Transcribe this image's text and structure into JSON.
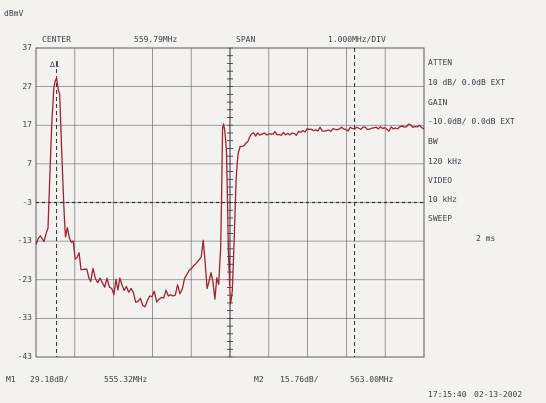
{
  "header": {
    "unit": "dBmV",
    "center_label": "CENTER",
    "center_value": "559.79MHz",
    "span_label": "SPAN",
    "span_value": "1.000MHz/DIV"
  },
  "side_panel": {
    "atten_label": "ATTEN",
    "atten_value": "10 dB/ 0.0dB EXT",
    "gain_label": "GAIN",
    "gain_value": "-10.0dB/ 0.0dB EXT",
    "bw_label": "BW",
    "bw_value": "120 kHz",
    "video_label": "VIDEO",
    "video_value": "10 kHz",
    "sweep_label": "SWEEP",
    "sweep_value": "2 ms"
  },
  "y_ticks": [
    "37",
    "27",
    "17",
    "7",
    "-3",
    "-13",
    "-23",
    "-33",
    "-43"
  ],
  "marker_tag": "∆1",
  "footer": {
    "m1_label": "M1",
    "m1_level": "29.18dB/",
    "m1_freq": "555.32MHz",
    "m2_label": "M2",
    "m2_level": "15.76dB/",
    "m2_freq": "563.00MHz",
    "time": "17:15:40",
    "date": "02-13-2002"
  },
  "colors": {
    "trace": "#a02233",
    "grid": "#5a5a66",
    "text": "#3e3e4c",
    "background": "#f4f2ee"
  },
  "chart_data": {
    "type": "line",
    "xlim": [
      554.79,
      564.79
    ],
    "ylim": [
      -43,
      37
    ],
    "x_unit": "MHz",
    "y_unit": "dBmV",
    "series": [
      {
        "x": [
          554.79,
          554.9,
          555.0,
          555.1,
          555.2,
          555.25,
          555.32,
          555.4,
          555.5,
          555.55,
          555.6,
          555.7,
          555.8,
          556.0,
          556.2,
          556.5,
          556.8,
          557.0,
          557.3,
          557.6,
          557.9,
          558.2,
          558.5,
          558.8,
          559.0,
          559.1,
          559.2,
          559.3,
          559.4,
          559.5,
          559.55,
          559.6,
          559.65,
          559.7,
          559.75,
          559.8,
          559.85,
          559.9,
          559.95,
          560.0,
          560.1,
          560.2,
          560.3,
          560.5,
          560.8,
          561.0,
          561.5,
          562.0,
          562.5,
          563.0,
          563.5,
          564.0,
          564.5,
          564.79
        ],
        "y": [
          -14,
          -11,
          -13,
          -9,
          18,
          27,
          29,
          25,
          -2,
          -12,
          -9,
          -14,
          -16,
          -20,
          -22,
          -23,
          -25,
          -24,
          -27,
          -28,
          -28,
          -27,
          -25,
          -22,
          -18,
          -12,
          -24,
          -22,
          -27,
          -22,
          -15,
          17,
          16,
          10,
          -15,
          -30,
          -25,
          -12,
          3,
          10,
          12,
          13,
          14,
          15,
          15,
          15,
          15,
          16,
          16,
          16,
          16,
          16,
          17,
          16
        ]
      }
    ]
  }
}
